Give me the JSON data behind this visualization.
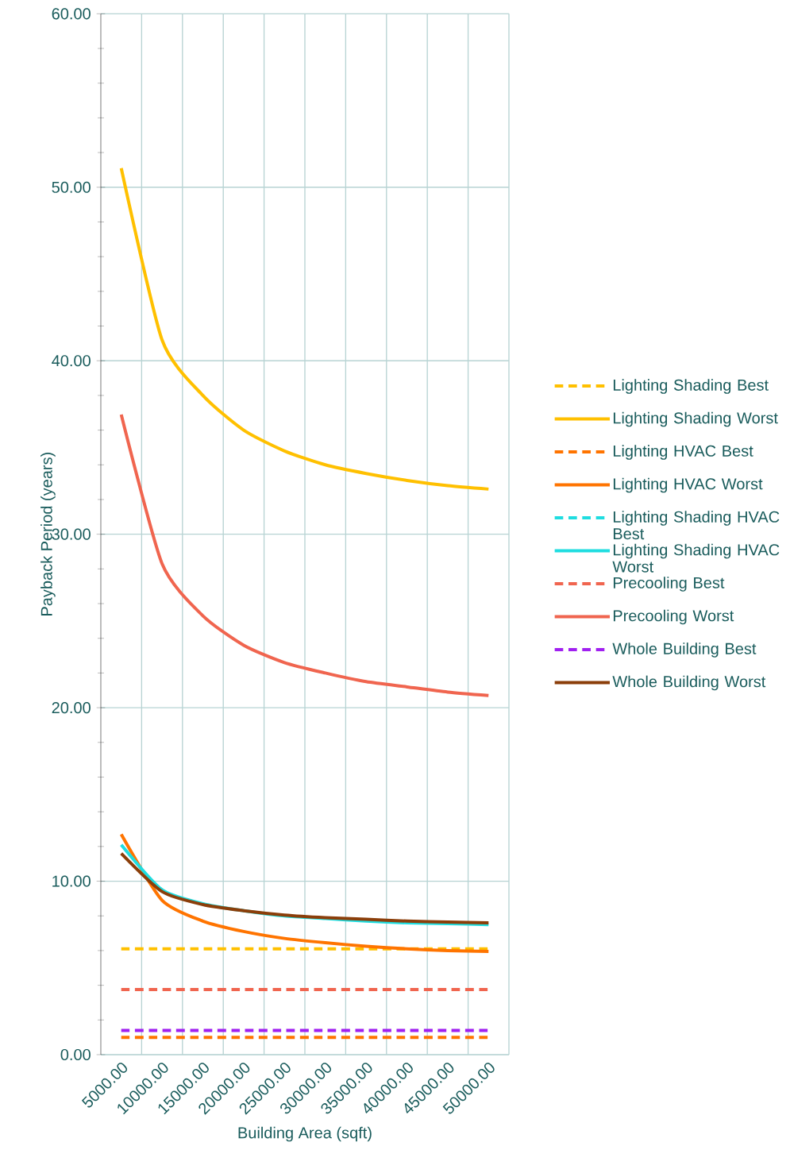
{
  "chart_data": {
    "type": "line",
    "xlabel": "Building Area (sqft)",
    "ylabel": "Payback Period (years)",
    "categories": [
      "5000.00",
      "10000.00",
      "15000.00",
      "20000.00",
      "25000.00",
      "30000.00",
      "35000.00",
      "40000.00",
      "45000.00",
      "50000.00"
    ],
    "ylim": [
      0,
      60
    ],
    "yticks": [
      {
        "value": 0,
        "label": "0.00"
      },
      {
        "value": 10,
        "label": "10.00"
      },
      {
        "value": 20,
        "label": "20.00"
      },
      {
        "value": 30,
        "label": "30.00"
      },
      {
        "value": 40,
        "label": "40.00"
      },
      {
        "value": 50,
        "label": "50.00"
      },
      {
        "value": 60,
        "label": "60.00"
      }
    ],
    "grid": true,
    "legend": "right",
    "marker": "none",
    "series": [
      {
        "name": "Lighting Shading Best",
        "color": "#ffc000",
        "line_style": "dashed",
        "values": [
          6.1,
          6.1,
          6.1,
          6.1,
          6.1,
          6.1,
          6.1,
          6.1,
          6.1,
          6.1
        ]
      },
      {
        "name": "Lighting Shading Worst",
        "color": "#ffc000",
        "line_style": "solid",
        "values": [
          51.1,
          41.2,
          38.0,
          36.0,
          34.8,
          34.0,
          33.5,
          33.1,
          32.8,
          32.6
        ]
      },
      {
        "name": "Lighting HVAC Best",
        "color": "#ff7400",
        "line_style": "dashed",
        "values": [
          1.0,
          1.0,
          1.0,
          1.0,
          1.0,
          1.0,
          1.0,
          1.0,
          1.0,
          1.0
        ]
      },
      {
        "name": "Lighting HVAC Worst",
        "color": "#ff7400",
        "line_style": "solid",
        "values": [
          12.7,
          8.9,
          7.7,
          7.1,
          6.7,
          6.45,
          6.25,
          6.1,
          6.0,
          5.95
        ]
      },
      {
        "name": "Lighting Shading HVAC Best",
        "color": "#1fdde0",
        "line_style": "dashed",
        "values": [
          null,
          null,
          null,
          null,
          null,
          null,
          null,
          null,
          null,
          null
        ]
      },
      {
        "name": "Lighting Shading HVAC Worst",
        "color": "#1fdde0",
        "line_style": "solid",
        "values": [
          12.1,
          9.5,
          8.7,
          8.3,
          8.0,
          7.85,
          7.7,
          7.6,
          7.55,
          7.5
        ]
      },
      {
        "name": "Precooling Best",
        "color": "#f0654f",
        "line_style": "dashed",
        "values": [
          3.75,
          3.75,
          3.75,
          3.75,
          3.75,
          3.75,
          3.75,
          3.75,
          3.75,
          3.75
        ]
      },
      {
        "name": "Precooling Worst",
        "color": "#f0654f",
        "line_style": "solid",
        "values": [
          36.9,
          28.3,
          25.3,
          23.6,
          22.6,
          22.0,
          21.5,
          21.2,
          20.9,
          20.7
        ]
      },
      {
        "name": "Whole Building Best",
        "color": "#a020f0",
        "line_style": "dashed",
        "values": [
          1.4,
          1.4,
          1.4,
          1.4,
          1.4,
          1.4,
          1.4,
          1.4,
          1.4,
          1.4
        ]
      },
      {
        "name": "Whole Building Worst",
        "color": "#8b3e0a",
        "line_style": "solid",
        "values": [
          11.6,
          9.4,
          8.65,
          8.3,
          8.05,
          7.9,
          7.8,
          7.7,
          7.65,
          7.6
        ]
      }
    ]
  }
}
